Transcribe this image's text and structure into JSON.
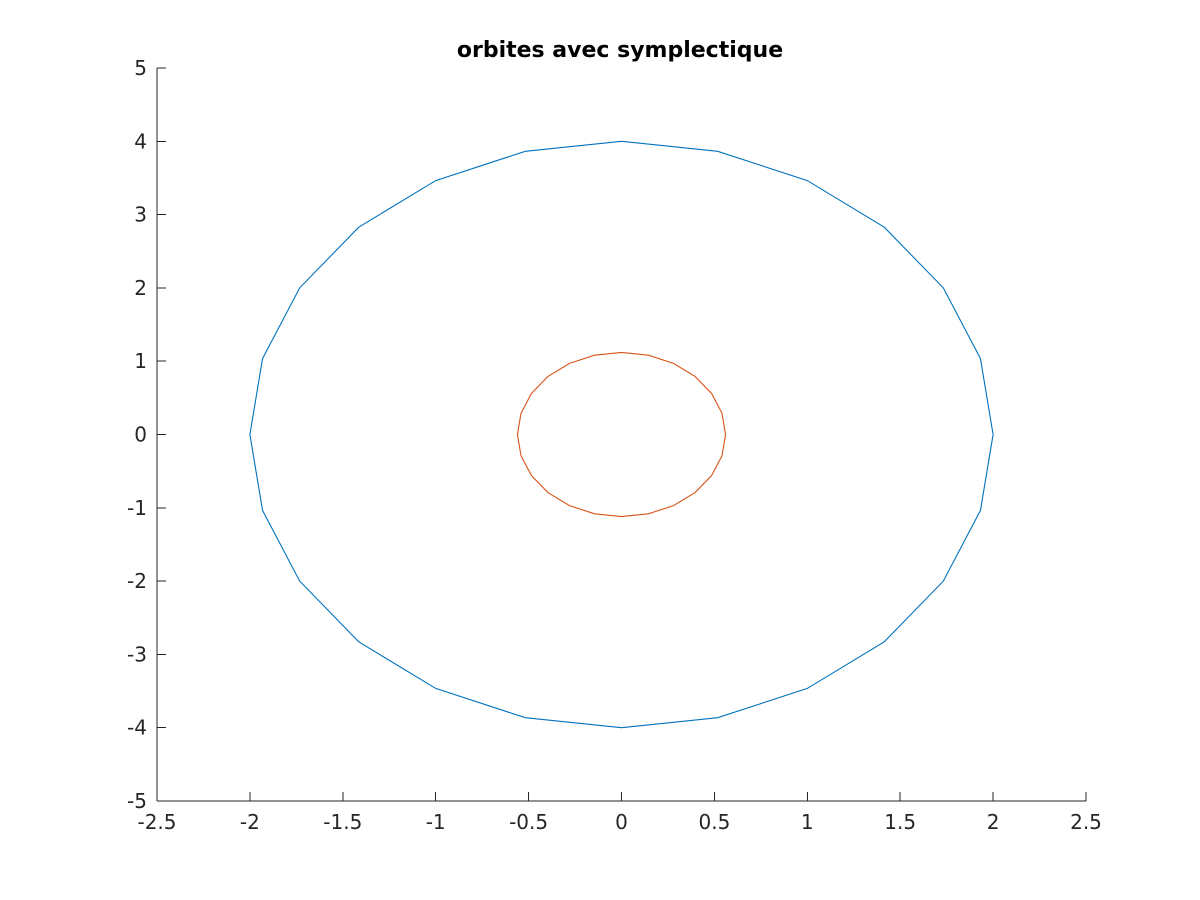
{
  "chart_data": {
    "type": "line",
    "title": "orbites avec symplectique",
    "xlabel": "",
    "ylabel": "",
    "xlim": [
      -2.5,
      2.5
    ],
    "ylim": [
      -5,
      5
    ],
    "x_ticks": [
      -2.5,
      -2,
      -1.5,
      -1,
      -0.5,
      0,
      0.5,
      1,
      1.5,
      2,
      2.5
    ],
    "x_tick_labels": [
      "-2.5",
      "-2",
      "-1.5",
      "-1",
      "-0.5",
      "0",
      "0.5",
      "1",
      "1.5",
      "2",
      "2.5"
    ],
    "y_ticks": [
      -5,
      -4,
      -3,
      -2,
      -1,
      0,
      1,
      2,
      3,
      4,
      5
    ],
    "y_tick_labels": [
      "-5",
      "-4",
      "-3",
      "-2",
      "-1",
      "0",
      "1",
      "2",
      "3",
      "4",
      "5"
    ],
    "grid": false,
    "series": [
      {
        "color": "#0072BD",
        "x": [
          2.0,
          1.9319,
          1.7321,
          1.4142,
          1.0,
          0.5176,
          0.0,
          -0.5176,
          -1.0,
          -1.4142,
          -1.7321,
          -1.9319,
          -2.0,
          -1.9319,
          -1.7321,
          -1.4142,
          -1.0,
          -0.5176,
          0.0,
          0.5176,
          1.0,
          1.4142,
          1.7321,
          1.9319,
          2.0
        ],
        "y": [
          0.0,
          1.0353,
          2.0,
          2.8284,
          3.4641,
          3.8637,
          4.0,
          3.8637,
          3.4641,
          2.8284,
          2.0,
          1.0353,
          0.0,
          -1.0353,
          -2.0,
          -2.8284,
          -3.4641,
          -3.8637,
          -4.0,
          -3.8637,
          -3.4641,
          -2.8284,
          -2.0,
          -1.0353,
          0.0
        ]
      },
      {
        "color": "#D95319",
        "x": [
          0.56,
          0.5409,
          0.485,
          0.396,
          0.28,
          0.1449,
          0.0,
          -0.1449,
          -0.28,
          -0.396,
          -0.485,
          -0.5409,
          -0.56,
          -0.5409,
          -0.485,
          -0.396,
          -0.28,
          -0.1449,
          0.0,
          0.1449,
          0.28,
          0.396,
          0.485,
          0.5409,
          0.56
        ],
        "y": [
          0.0,
          0.2899,
          0.56,
          0.792,
          0.97,
          1.0818,
          1.12,
          1.0818,
          0.97,
          0.792,
          0.56,
          0.2899,
          0.0,
          -0.2899,
          -0.56,
          -0.792,
          -0.97,
          -1.0818,
          -1.12,
          -1.0818,
          -0.97,
          -0.792,
          -0.56,
          -0.2899,
          0.0
        ]
      }
    ]
  }
}
